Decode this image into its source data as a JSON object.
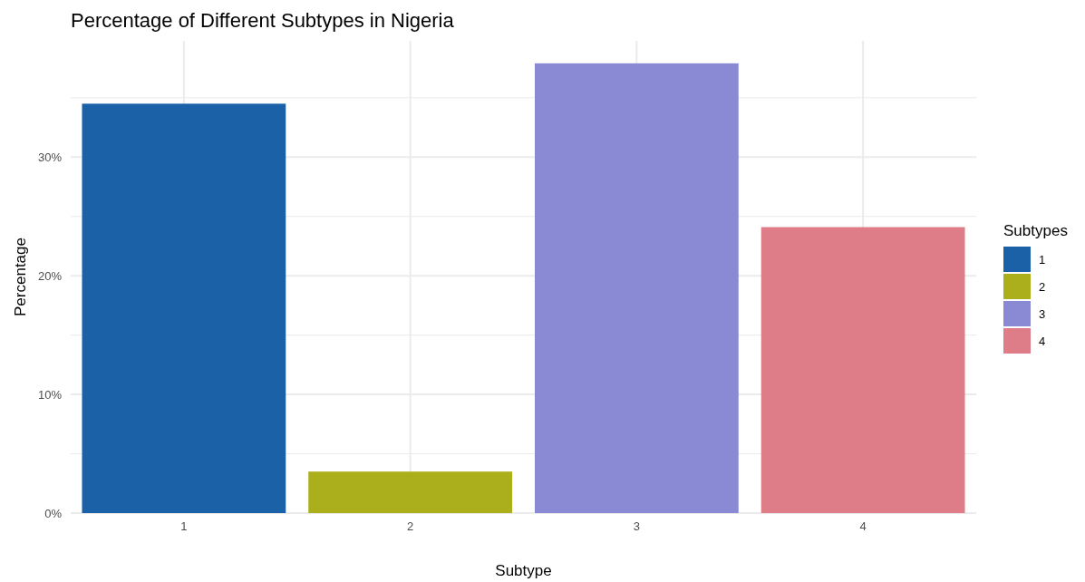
{
  "chart_data": {
    "type": "bar",
    "title": "Percentage of Different Subtypes in Nigeria",
    "xlabel": "Subtype",
    "ylabel": "Percentage",
    "legend_title": "Subtypes",
    "categories": [
      "1",
      "2",
      "3",
      "4"
    ],
    "series": [
      {
        "name": "1",
        "color": "#1a61a8",
        "values": [
          34.5,
          null,
          null,
          null
        ]
      },
      {
        "name": "2",
        "color": "#abaf1c",
        "values": [
          null,
          3.5,
          null,
          null
        ]
      },
      {
        "name": "3",
        "color": "#8a8ad4",
        "values": [
          null,
          null,
          37.9,
          null
        ]
      },
      {
        "name": "4",
        "color": "#de7c87",
        "values": [
          null,
          null,
          null,
          24.1
        ]
      }
    ],
    "ylim": [
      0,
      39.8
    ],
    "yticks": [
      {
        "value": 0,
        "label": "0%"
      },
      {
        "value": 5,
        "label": null
      },
      {
        "value": 10,
        "label": "10%"
      },
      {
        "value": 15,
        "label": null
      },
      {
        "value": 20,
        "label": "20%"
      },
      {
        "value": 25,
        "label": null
      },
      {
        "value": 30,
        "label": "30%"
      },
      {
        "value": 35,
        "label": null
      }
    ],
    "grid": true,
    "legend": "right"
  }
}
